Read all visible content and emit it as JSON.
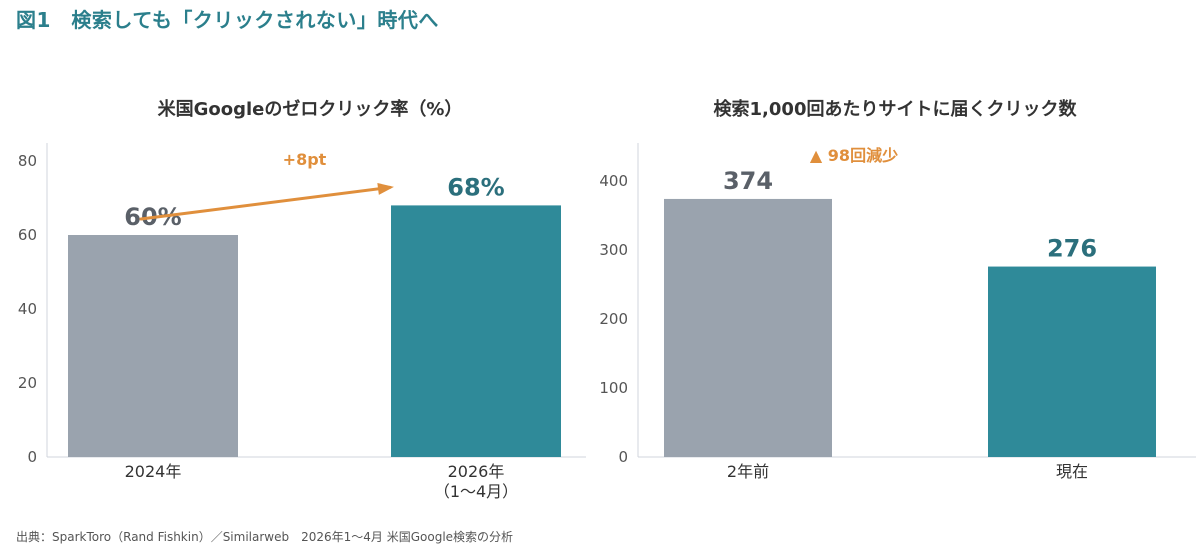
{
  "figure_title": "図1　検索しても「クリックされない」時代へ",
  "source_note": "出典：SparkToro（Rand Fishkin）／Similarweb　2026年1〜4月 米国Google検索の分析",
  "colors": {
    "gray_bar": "#9aa3ae",
    "teal_bar": "#2f8a99",
    "teal_text": "#2b6f7c",
    "gray_text": "#5a6068",
    "accent_orange": "#e08f3c"
  },
  "chart_data": [
    {
      "type": "bar",
      "title": "米国Googleのゼロクリック率（%）",
      "categories": [
        [
          "2024年"
        ],
        [
          "2026年",
          "（1〜4月）"
        ]
      ],
      "values": [
        60,
        68
      ],
      "data_labels": [
        "60%",
        "68%"
      ],
      "ylim": [
        0,
        80
      ],
      "yticks": [
        0,
        20,
        40,
        60,
        80
      ],
      "annotation": {
        "text": "+8pt",
        "type": "arrow-from-first-to-second-bar"
      },
      "grid": false
    },
    {
      "type": "bar",
      "title": "検索1,000回あたりサイトに届くクリック数",
      "categories": [
        [
          "2年前"
        ],
        [
          "現在"
        ]
      ],
      "values": [
        374,
        276
      ],
      "data_labels": [
        "374",
        "276"
      ],
      "ylim": [
        0,
        400
      ],
      "yticks": [
        0,
        100,
        200,
        300,
        400
      ],
      "annotation": {
        "text": "▲ 98回減少"
      },
      "grid": false
    }
  ]
}
